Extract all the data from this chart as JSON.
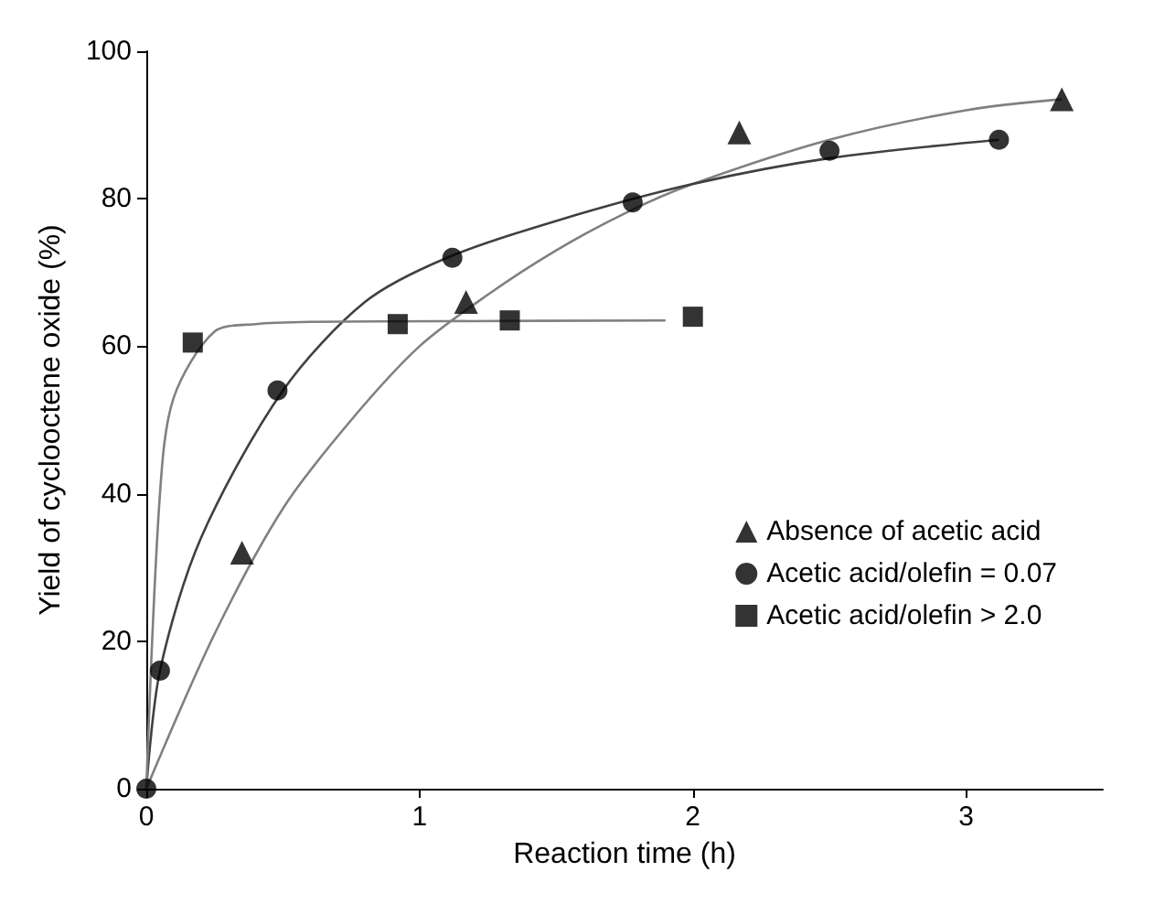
{
  "chart_data": {
    "type": "scatter",
    "xlabel": "Reaction time (h)",
    "ylabel": "Yield of cyclooctene oxide (%)",
    "xlim": [
      0,
      3.5
    ],
    "xticks": [
      0,
      1,
      2,
      3
    ],
    "ylim": [
      0,
      100
    ],
    "yticks": [
      0,
      20,
      40,
      60,
      80,
      100
    ],
    "grid": false,
    "legend": "right",
    "series": [
      {
        "name": "Absence of acetic acid",
        "color": "#000000",
        "marker": "triangle",
        "x": [
          0.35,
          1.17,
          2.17,
          3.35
        ],
        "values": [
          32,
          66,
          89,
          93.5
        ]
      },
      {
        "name": "Acetic acid/olefin = 0.07",
        "color": "#000000",
        "marker": "circle",
        "x": [
          0,
          0.05,
          0.48,
          1.12,
          1.78,
          2.5,
          3.12
        ],
        "values": [
          0,
          16,
          54,
          72,
          79.5,
          86.5,
          88
        ]
      },
      {
        "name": "Acetic acid/olefin > 2.0",
        "color": "#000000",
        "marker": "square",
        "x": [
          0.17,
          0.92,
          1.33,
          2.0
        ],
        "values": [
          60.5,
          63,
          63.5,
          64
        ]
      },
      {
        "type": "line",
        "color": "#808080",
        "marker": "none",
        "line_style": "solid",
        "x": [
          0,
          0.25,
          0.5,
          0.75,
          1,
          1.25,
          1.5,
          1.75,
          2,
          2.5,
          3,
          3.35
        ],
        "values": [
          0,
          21,
          38,
          50,
          60,
          67,
          73,
          78,
          82,
          88,
          92,
          93.5
        ]
      },
      {
        "type": "line",
        "color": "#404040",
        "marker": "none",
        "line_style": "solid",
        "x": [
          0,
          0.05,
          0.2,
          0.5,
          0.8,
          1.1,
          1.5,
          2,
          2.5,
          3.12
        ],
        "values": [
          0,
          16,
          34,
          54,
          66,
          72,
          77,
          82,
          85.5,
          88
        ]
      },
      {
        "type": "line",
        "color": "#808080",
        "marker": "none",
        "line_style": "solid",
        "x": [
          0,
          0.05,
          0.1,
          0.25,
          0.4,
          0.6,
          1.1,
          1.9
        ],
        "values": [
          0,
          40,
          53,
          62,
          63,
          63.3,
          63.4,
          63.5
        ]
      }
    ]
  }
}
